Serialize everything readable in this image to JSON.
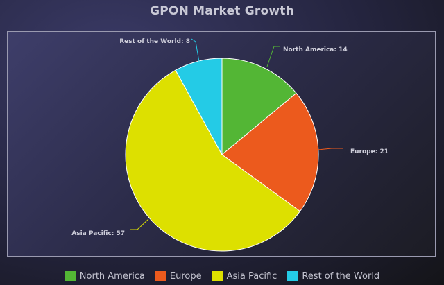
{
  "chart_data": {
    "type": "pie",
    "title": "GPON Market Growth",
    "categories": [
      "North America",
      "Europe",
      "Asia Pacific",
      "Rest of the World"
    ],
    "values": [
      14,
      21,
      57,
      8
    ],
    "colors": [
      "#53b635",
      "#ec5a1d",
      "#dde000",
      "#24cbe6"
    ],
    "data_labels": [
      "North America: 14",
      "Europe: 21",
      "Asia Pacific: 57",
      "Rest of the World: 8"
    ],
    "legend": {
      "position": "bottom"
    }
  }
}
